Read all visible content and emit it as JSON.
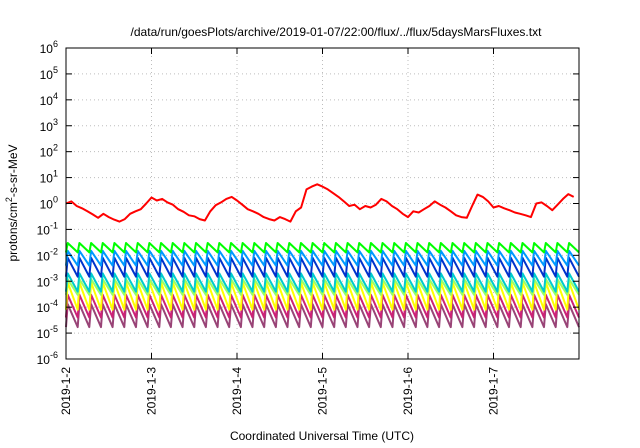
{
  "chart_data": {
    "type": "line",
    "title": "/data/run/goesPlots/archive/2019-01-07/22:00/flux/../flux/5daysMarsFluxes.txt",
    "xlabel": "Coordinated Universal Time (UTC)",
    "ylabel": {
      "base": "protons/cm",
      "sup": "2",
      "tail": "-s-sr-MeV"
    },
    "y_scale": "log",
    "ylim_exp": [
      -6,
      6
    ],
    "y_ticks": [
      {
        "base": "10",
        "exp": "-6"
      },
      {
        "base": "10",
        "exp": "-5"
      },
      {
        "base": "10",
        "exp": "-4"
      },
      {
        "base": "10",
        "exp": "-3"
      },
      {
        "base": "10",
        "exp": "-2"
      },
      {
        "base": "10",
        "exp": "-1"
      },
      {
        "base": "10",
        "exp": "0"
      },
      {
        "base": "10",
        "exp": "1"
      },
      {
        "base": "10",
        "exp": "2"
      },
      {
        "base": "10",
        "exp": "3"
      },
      {
        "base": "10",
        "exp": "4"
      },
      {
        "base": "10",
        "exp": "5"
      },
      {
        "base": "10",
        "exp": "6"
      }
    ],
    "xlim": [
      "2019-01-02",
      "2019-01-08"
    ],
    "x_ticks": [
      "2019-1-2",
      "2019-1-3",
      "2019-1-4",
      "2019-1-5",
      "2019-1-6",
      "2019-1-7"
    ],
    "grid": true,
    "legend": "none",
    "series": [
      {
        "color": "#ff0000",
        "x": [
          "2019-01-02T00:00",
          "2019-01-02T01:30",
          "2019-01-02T03:00",
          "2019-01-02T04:30",
          "2019-01-02T06:00",
          "2019-01-02T07:30",
          "2019-01-02T09:00",
          "2019-01-02T10:30",
          "2019-01-02T12:00",
          "2019-01-02T13:30",
          "2019-01-02T15:00",
          "2019-01-02T16:30",
          "2019-01-02T18:00",
          "2019-01-02T19:30",
          "2019-01-02T21:00",
          "2019-01-02T22:30",
          "2019-01-03T00:00",
          "2019-01-03T01:30",
          "2019-01-03T03:00",
          "2019-01-03T04:30",
          "2019-01-03T06:00",
          "2019-01-03T07:30",
          "2019-01-03T09:00",
          "2019-01-03T10:30",
          "2019-01-03T12:00",
          "2019-01-03T13:30",
          "2019-01-03T15:00",
          "2019-01-03T16:30",
          "2019-01-03T18:00",
          "2019-01-03T19:30",
          "2019-01-03T21:00",
          "2019-01-03T22:30",
          "2019-01-04T00:00",
          "2019-01-04T01:30",
          "2019-01-04T03:00",
          "2019-01-04T04:30",
          "2019-01-04T06:00",
          "2019-01-04T07:30",
          "2019-01-04T09:00",
          "2019-01-04T10:30",
          "2019-01-04T12:00",
          "2019-01-04T13:30",
          "2019-01-04T15:00",
          "2019-01-04T16:30",
          "2019-01-04T18:00",
          "2019-01-04T19:30",
          "2019-01-04T21:00",
          "2019-01-04T22:30",
          "2019-01-05T00:00",
          "2019-01-05T01:30",
          "2019-01-05T03:00",
          "2019-01-05T04:30",
          "2019-01-05T06:00",
          "2019-01-05T07:30",
          "2019-01-05T09:00",
          "2019-01-05T10:30",
          "2019-01-05T12:00",
          "2019-01-05T13:30",
          "2019-01-05T15:00",
          "2019-01-05T16:30",
          "2019-01-05T18:00",
          "2019-01-05T19:30",
          "2019-01-05T21:00",
          "2019-01-05T22:30",
          "2019-01-06T00:00",
          "2019-01-06T01:30",
          "2019-01-06T03:00",
          "2019-01-06T04:30",
          "2019-01-06T06:00",
          "2019-01-06T07:30",
          "2019-01-06T09:00",
          "2019-01-06T10:30",
          "2019-01-06T12:00",
          "2019-01-06T13:30",
          "2019-01-06T15:00",
          "2019-01-06T16:30",
          "2019-01-06T18:00",
          "2019-01-06T19:30",
          "2019-01-06T21:00",
          "2019-01-06T22:30",
          "2019-01-07T00:00",
          "2019-01-07T01:30",
          "2019-01-07T03:00",
          "2019-01-07T04:30",
          "2019-01-07T06:00",
          "2019-01-07T07:30",
          "2019-01-07T09:00",
          "2019-01-07T10:30",
          "2019-01-07T12:00",
          "2019-01-07T13:30",
          "2019-01-07T15:00",
          "2019-01-07T16:30",
          "2019-01-07T18:00",
          "2019-01-07T19:30",
          "2019-01-07T21:00",
          "2019-01-07T22:30"
        ],
        "y": [
          1.0,
          1.2,
          0.8,
          0.65,
          0.5,
          0.38,
          0.28,
          0.4,
          0.3,
          0.24,
          0.2,
          0.25,
          0.4,
          0.5,
          0.6,
          1.0,
          1.7,
          1.3,
          1.5,
          1.1,
          0.9,
          0.6,
          0.48,
          0.35,
          0.32,
          0.25,
          0.22,
          0.5,
          0.85,
          1.1,
          1.5,
          1.8,
          1.3,
          0.9,
          0.6,
          0.5,
          0.4,
          0.3,
          0.25,
          0.22,
          0.3,
          0.25,
          0.2,
          0.5,
          0.7,
          3.5,
          4.5,
          5.5,
          4.5,
          3.5,
          2.5,
          1.8,
          1.2,
          0.8,
          0.9,
          0.6,
          0.8,
          0.7,
          0.9,
          1.5,
          1.2,
          0.8,
          0.6,
          0.4,
          0.3,
          0.5,
          0.45,
          0.6,
          0.8,
          1.2,
          0.9,
          0.7,
          0.5,
          0.35,
          0.3,
          0.28,
          0.8,
          2.2,
          1.8,
          1.2,
          0.7,
          0.8,
          0.65,
          0.55,
          0.45,
          0.4,
          0.35,
          0.3,
          1.0,
          1.1,
          0.8,
          0.55,
          0.9,
          1.5,
          2.3,
          1.8
        ]
      },
      {
        "color": "#00ff00",
        "peak": 0.03,
        "trough": 0.013,
        "cycles": 44
      },
      {
        "color": "#0099ff",
        "peak": 0.015,
        "trough": 0.004,
        "cycles": 44
      },
      {
        "color": "#0033cc",
        "peak": 0.008,
        "trough": 0.0015,
        "cycles": 44
      },
      {
        "color": "#00cccc",
        "peak": 0.002,
        "trough": 0.0004,
        "cycles": 44
      },
      {
        "color": "#99ff66",
        "peak": 0.0012,
        "trough": 0.0003,
        "cycles": 44
      },
      {
        "color": "#ffff00",
        "peak": 0.0009,
        "trough": 8e-05,
        "cycles": 44
      },
      {
        "color": "#cc2277",
        "peak": 0.0003,
        "trough": 4e-05,
        "cycles": 44
      },
      {
        "color": "#994477",
        "peak": 0.00013,
        "trough": 1.7e-05,
        "cycles": 44
      }
    ]
  }
}
